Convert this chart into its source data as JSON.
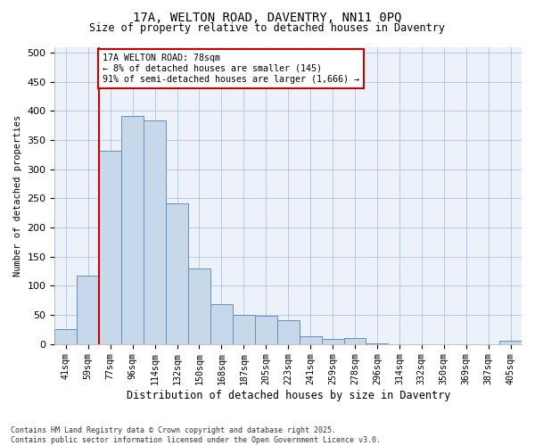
{
  "title_line1": "17A, WELTON ROAD, DAVENTRY, NN11 0PQ",
  "title_line2": "Size of property relative to detached houses in Daventry",
  "xlabel": "Distribution of detached houses by size in Daventry",
  "ylabel": "Number of detached properties",
  "bar_color": "#c8d8eb",
  "bar_edge_color": "#6090c0",
  "grid_color": "#adc4de",
  "background_color": "#edf2fa",
  "bin_labels": [
    "41sqm",
    "59sqm",
    "77sqm",
    "96sqm",
    "114sqm",
    "132sqm",
    "150sqm",
    "168sqm",
    "187sqm",
    "205sqm",
    "223sqm",
    "241sqm",
    "259sqm",
    "278sqm",
    "296sqm",
    "314sqm",
    "332sqm",
    "350sqm",
    "369sqm",
    "387sqm",
    "405sqm"
  ],
  "counts": [
    25,
    117,
    331,
    392,
    383,
    242,
    130,
    68,
    50,
    48,
    41,
    14,
    8,
    10,
    1,
    0,
    0,
    0,
    0,
    0,
    6
  ],
  "annotation_text": "17A WELTON ROAD: 78sqm\n← 8% of detached houses are smaller (145)\n91% of semi-detached houses are larger (1,666) →",
  "annotation_box_color": "white",
  "annotation_border_color": "#cc0000",
  "vline_color": "#cc0000",
  "ylim": [
    0,
    510
  ],
  "yticks": [
    0,
    50,
    100,
    150,
    200,
    250,
    300,
    350,
    400,
    450,
    500
  ],
  "vline_pos": 1.5,
  "footnote": "Contains HM Land Registry data © Crown copyright and database right 2025.\nContains public sector information licensed under the Open Government Licence v3.0."
}
